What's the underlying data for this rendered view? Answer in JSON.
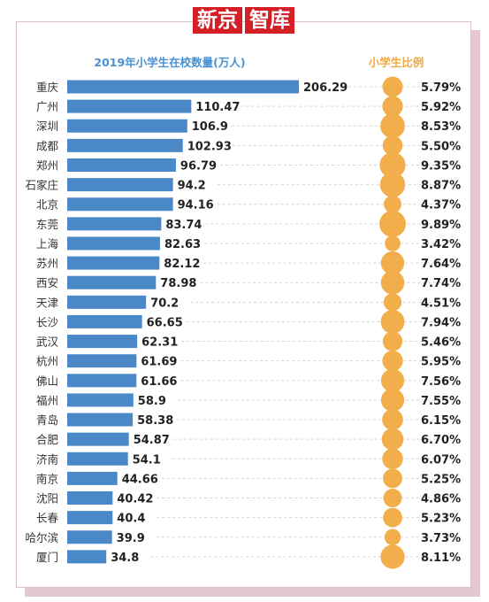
{
  "brand": {
    "left": "新京",
    "right": "智库"
  },
  "chart_data": {
    "type": "bar",
    "title": "2019年小学生在校数量(万人)",
    "ratio_title": "小学生比例",
    "categories": [
      "重庆",
      "广州",
      "深圳",
      "成都",
      "郑州",
      "石家庄",
      "北京",
      "东莞",
      "上海",
      "苏州",
      "西安",
      "天津",
      "长沙",
      "武汉",
      "杭州",
      "佛山",
      "福州",
      "青岛",
      "合肥",
      "济南",
      "南京",
      "沈阳",
      "长春",
      "哈尔滨",
      "厦门"
    ],
    "values": [
      206.29,
      110.47,
      106.9,
      102.93,
      96.79,
      94.2,
      94.16,
      83.74,
      82.63,
      82.12,
      78.98,
      70.2,
      66.65,
      62.31,
      61.69,
      61.66,
      58.9,
      58.38,
      54.87,
      54.1,
      44.66,
      40.42,
      40.4,
      39.9,
      34.8
    ],
    "value_labels": [
      "206.29",
      "110.47",
      "106.9",
      "102.93",
      "96.79",
      "94.2",
      "94.16",
      "83.74",
      "82.63",
      "82.12",
      "78.98",
      "70.2",
      "66.65",
      "62.31",
      "61.69",
      "61.66",
      "58.9",
      "58.38",
      "54.87",
      "54.1",
      "44.66",
      "40.42",
      "40.4",
      "39.9",
      "34.8"
    ],
    "ratios": [
      5.79,
      5.92,
      8.53,
      5.5,
      9.35,
      8.87,
      4.37,
      9.89,
      3.42,
      7.64,
      7.74,
      4.51,
      7.94,
      5.46,
      5.95,
      7.56,
      7.55,
      6.15,
      6.7,
      6.07,
      5.25,
      4.86,
      5.23,
      3.73,
      8.11
    ],
    "ratio_labels": [
      "5.79%",
      "5.92%",
      "8.53%",
      "5.50%",
      "9.35%",
      "8.87%",
      "4.37%",
      "9.89%",
      "3.42%",
      "7.64%",
      "7.74%",
      "4.51%",
      "7.94%",
      "5.46%",
      "5.95%",
      "7.56%",
      "7.55%",
      "6.15%",
      "6.70%",
      "6.07%",
      "5.25%",
      "4.86%",
      "5.23%",
      "3.73%",
      "8.11%"
    ],
    "colors": {
      "bar": "#4a88c7",
      "bubble": "#f2ae4a",
      "title": "#4a90d0",
      "ratio_title": "#f0a83c",
      "brand": "#d41f26"
    }
  }
}
